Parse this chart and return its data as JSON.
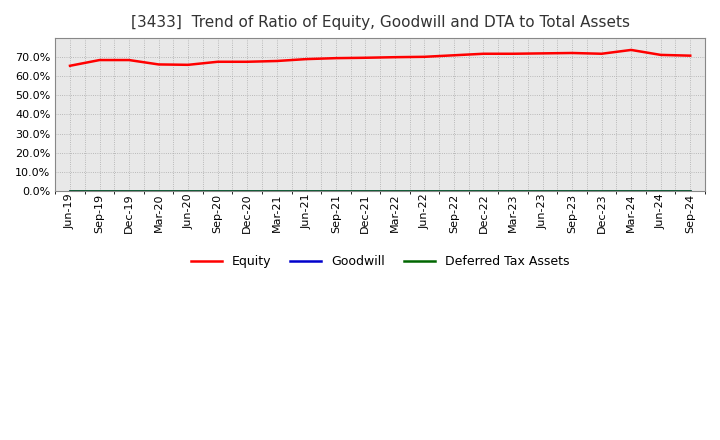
{
  "title": "[3433]  Trend of Ratio of Equity, Goodwill and DTA to Total Assets",
  "x_labels": [
    "Jun-19",
    "Sep-19",
    "Dec-19",
    "Mar-20",
    "Jun-20",
    "Sep-20",
    "Dec-20",
    "Mar-21",
    "Jun-21",
    "Sep-21",
    "Dec-21",
    "Mar-22",
    "Jun-22",
    "Sep-22",
    "Dec-22",
    "Mar-23",
    "Jun-23",
    "Sep-23",
    "Dec-23",
    "Mar-24",
    "Jun-24",
    "Sep-24"
  ],
  "equity": [
    0.655,
    0.685,
    0.685,
    0.662,
    0.66,
    0.676,
    0.676,
    0.68,
    0.69,
    0.695,
    0.697,
    0.7,
    0.702,
    0.71,
    0.718,
    0.718,
    0.72,
    0.722,
    0.718,
    0.738,
    0.712,
    0.708
  ],
  "goodwill": [
    0.0,
    0.0,
    0.0,
    0.0,
    0.0,
    0.0,
    0.0,
    0.0,
    0.0,
    0.0,
    0.0,
    0.0,
    0.0,
    0.0,
    0.0,
    0.0,
    0.0,
    0.0,
    0.0,
    0.0,
    0.0,
    0.0
  ],
  "dta": [
    0.0,
    0.0,
    0.0,
    0.0,
    0.0,
    0.0,
    0.0,
    0.0,
    0.0,
    0.0,
    0.0,
    0.0,
    0.0,
    0.0,
    0.0,
    0.0,
    0.0,
    0.0,
    0.0,
    0.0,
    0.0,
    0.0
  ],
  "equity_color": "#ff0000",
  "goodwill_color": "#0000cc",
  "dta_color": "#006600",
  "ylim": [
    0.0,
    0.8
  ],
  "yticks": [
    0.0,
    0.1,
    0.2,
    0.3,
    0.4,
    0.5,
    0.6,
    0.7
  ],
  "background_color": "#ffffff",
  "plot_bg_color": "#e8e8e8",
  "grid_color": "#aaaaaa",
  "title_fontsize": 11,
  "tick_fontsize": 8,
  "legend_labels": [
    "Equity",
    "Goodwill",
    "Deferred Tax Assets"
  ]
}
